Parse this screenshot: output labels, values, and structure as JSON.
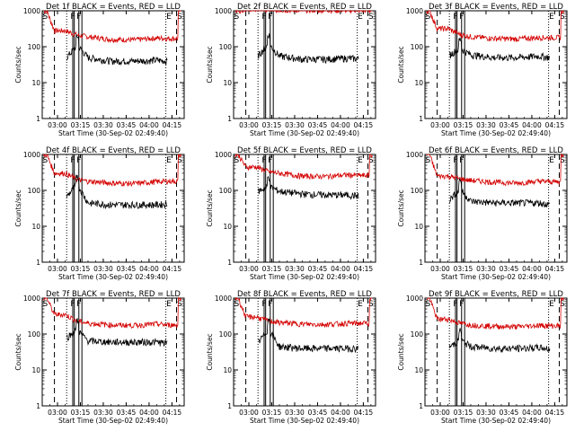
{
  "layout": {
    "rows": 3,
    "cols": 3
  },
  "colors": {
    "events": "#000000",
    "lld": "#d40000",
    "axes": "#000000",
    "background": "#ffffff"
  },
  "shared": {
    "xlabel": "Start Time (30-Sep-02 02:49:40)",
    "ylabel": "Counts/sec",
    "x_ticks": [
      "03:00",
      "03:15",
      "03:30",
      "03:45",
      "04:00",
      "04:15"
    ],
    "y_ticks": [
      "1",
      "10",
      "100",
      "1000"
    ],
    "markers": [
      "S",
      "F",
      "F",
      "E",
      "S"
    ]
  },
  "chart_data": [
    {
      "type": "line",
      "title": "Det 1f BLACK = Events, RED = LLD",
      "series": [
        {
          "name": "Events",
          "values": [
            45,
            110,
            50,
            40,
            40,
            42,
            40
          ]
        },
        {
          "name": "LLD",
          "values": [
            280,
            210,
            190,
            160,
            155,
            175,
            170
          ]
        }
      ],
      "x": [
        "03:05",
        "03:13",
        "03:20",
        "03:35",
        "03:50",
        "04:05",
        "04:12"
      ],
      "ylim": [
        1,
        1000
      ],
      "yscale": "log"
    },
    {
      "type": "line",
      "title": "Det 2f BLACK = Events, RED = LLD",
      "series": [
        {
          "name": "Events",
          "values": [
            50,
            120,
            55,
            45,
            45,
            48,
            46
          ]
        },
        {
          "name": "LLD",
          "values": [
            1150,
            1100,
            1050,
            1050,
            1050,
            1050,
            1050
          ]
        }
      ],
      "x": [
        "03:05",
        "03:13",
        "03:20",
        "03:35",
        "03:50",
        "04:05",
        "04:12"
      ],
      "ylim": [
        1,
        1000
      ],
      "yscale": "log"
    },
    {
      "type": "line",
      "title": "Det 3f BLACK = Events, RED = LLD",
      "series": [
        {
          "name": "Events",
          "values": [
            55,
            90,
            60,
            50,
            50,
            55,
            50
          ]
        },
        {
          "name": "LLD",
          "values": [
            320,
            220,
            190,
            170,
            165,
            180,
            180
          ]
        }
      ],
      "x": [
        "03:05",
        "03:13",
        "03:20",
        "03:35",
        "03:50",
        "04:05",
        "04:12"
      ],
      "ylim": [
        1,
        1000
      ],
      "yscale": "log"
    },
    {
      "type": "line",
      "title": "Det 4f BLACK = Events, RED = LLD",
      "series": [
        {
          "name": "Events",
          "values": [
            60,
            150,
            45,
            40,
            40,
            40,
            42
          ]
        },
        {
          "name": "LLD",
          "values": [
            300,
            200,
            180,
            160,
            155,
            175,
            180
          ]
        }
      ],
      "x": [
        "03:05",
        "03:13",
        "03:20",
        "03:35",
        "03:50",
        "04:05",
        "04:12"
      ],
      "ylim": [
        1,
        1000
      ],
      "yscale": "log"
    },
    {
      "type": "line",
      "title": "Det 5f BLACK = Events, RED = LLD",
      "series": [
        {
          "name": "Events",
          "values": [
            90,
            130,
            95,
            80,
            75,
            75,
            70
          ]
        },
        {
          "name": "LLD",
          "values": [
            450,
            330,
            300,
            250,
            245,
            270,
            260
          ]
        }
      ],
      "x": [
        "03:05",
        "03:13",
        "03:20",
        "03:35",
        "03:50",
        "04:05",
        "04:12"
      ],
      "ylim": [
        1,
        1000
      ],
      "yscale": "log"
    },
    {
      "type": "line",
      "title": "Det 6f BLACK = Events, RED = LLD",
      "series": [
        {
          "name": "Events",
          "values": [
            50,
            110,
            50,
            45,
            45,
            45,
            40
          ]
        },
        {
          "name": "LLD",
          "values": [
            250,
            210,
            190,
            170,
            160,
            180,
            175
          ]
        }
      ],
      "x": [
        "03:05",
        "03:13",
        "03:20",
        "03:35",
        "03:50",
        "04:05",
        "04:12"
      ],
      "ylim": [
        1,
        1000
      ],
      "yscale": "log"
    },
    {
      "type": "line",
      "title": "Det 7f BLACK = Events, RED = LLD",
      "series": [
        {
          "name": "Events",
          "values": [
            75,
            130,
            65,
            60,
            60,
            60,
            55
          ]
        },
        {
          "name": "LLD",
          "values": [
            350,
            230,
            200,
            180,
            175,
            190,
            180
          ]
        }
      ],
      "x": [
        "03:05",
        "03:13",
        "03:20",
        "03:35",
        "03:50",
        "04:05",
        "04:12"
      ],
      "ylim": [
        1,
        1000
      ],
      "yscale": "log"
    },
    {
      "type": "line",
      "title": "Det 8f BLACK = Events, RED = LLD",
      "series": [
        {
          "name": "Events",
          "values": [
            50,
            140,
            45,
            40,
            40,
            40,
            40
          ]
        },
        {
          "name": "LLD",
          "values": [
            300,
            230,
            210,
            190,
            185,
            200,
            200
          ]
        }
      ],
      "x": [
        "03:05",
        "03:13",
        "03:20",
        "03:35",
        "03:50",
        "04:05",
        "04:12"
      ],
      "ylim": [
        1,
        1000
      ],
      "yscale": "log"
    },
    {
      "type": "line",
      "title": "Det 9f BLACK = Events, RED = LLD",
      "series": [
        {
          "name": "Events",
          "values": [
            40,
            70,
            45,
            40,
            40,
            42,
            38
          ]
        },
        {
          "name": "LLD",
          "values": [
            260,
            200,
            180,
            165,
            160,
            175,
            170
          ]
        }
      ],
      "x": [
        "03:05",
        "03:13",
        "03:20",
        "03:35",
        "03:50",
        "04:05",
        "04:12"
      ],
      "ylim": [
        1,
        1000
      ],
      "yscale": "log"
    }
  ]
}
